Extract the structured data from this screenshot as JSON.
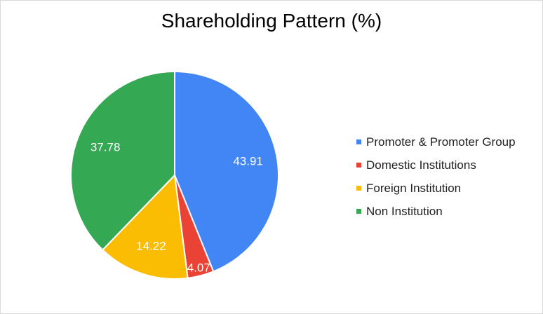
{
  "chart_data": {
    "type": "pie",
    "title": "Shareholding Pattern (%)",
    "legend_position": "right",
    "slices": [
      {
        "label": "Promoter & Promoter Group",
        "value": 43.91,
        "display": "43.91",
        "color": "#4285f4"
      },
      {
        "label": "Domestic Institutions",
        "value": 4.07,
        "display": "4.07",
        "color": "#ea4335"
      },
      {
        "label": "Foreign Institution",
        "value": 14.22,
        "display": "14.22",
        "color": "#fbbc04"
      },
      {
        "label": "Non Institution",
        "value": 37.78,
        "display": "37.78",
        "color": "#34a853"
      }
    ]
  }
}
